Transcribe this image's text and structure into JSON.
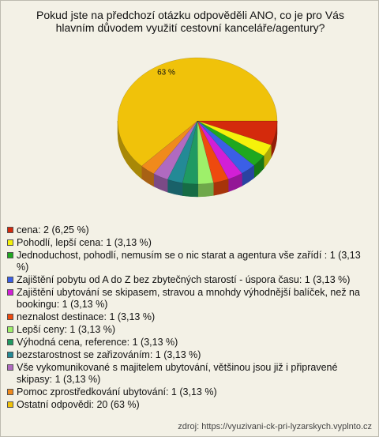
{
  "chart_data": {
    "type": "pie3d",
    "title": "Pokud jste na předchozí otázku odpověděli ANO, co je pro Vás hlavním důvodem využití cestovní kanceláře/agentury?",
    "categories": [
      "cena: 2 (6,25 %)",
      "Pohodlí, lepší cena: 1 (3,13 %)",
      "Jednoduchost, pohodlí, nemusím se o nic starat a agentura vše zařídí : 1 (3,13 %)",
      "Zajištění pobytu od A do Z bez zbytečných starostí - úspora času: 1 (3,13 %)",
      "Zajištění ubytování se skipasem, stravou a mnohdy výhodnější balíček, než na bookingu: 1 (3,13 %)",
      "neznalost destinace: 1 (3,13 %)",
      "Lepší ceny: 1 (3,13 %)",
      "Výhodná cena, reference: 1 (3,13 %)",
      "bezstarostnost se zařizováním: 1 (3,13 %)",
      "Vše vykomunikované s majitelem ubytování, většinou jsou již i připravené skipasy: 1 (3,13 %)",
      "Pomoc zprostředkování ubytování: 1 (3,13 %)",
      "Ostatní odpovědi: 20 (63 %)"
    ],
    "values": [
      6.25,
      3.13,
      3.13,
      3.13,
      3.13,
      3.13,
      3.13,
      3.13,
      3.13,
      3.13,
      3.13,
      63
    ],
    "value_labels": [
      null,
      null,
      null,
      null,
      null,
      null,
      null,
      null,
      null,
      null,
      null,
      "63 %"
    ],
    "colors": [
      "#d42a0c",
      "#f5f20a",
      "#1fa81f",
      "#3b5fe6",
      "#d21fd6",
      "#ee4a0e",
      "#9ef06a",
      "#1f9a62",
      "#238a96",
      "#b06ac0",
      "#f08a1c",
      "#f0c20a"
    ],
    "source": "zdroj: https://vyuzivani-ck-pri-lyzarskych.vyplnto.cz"
  }
}
